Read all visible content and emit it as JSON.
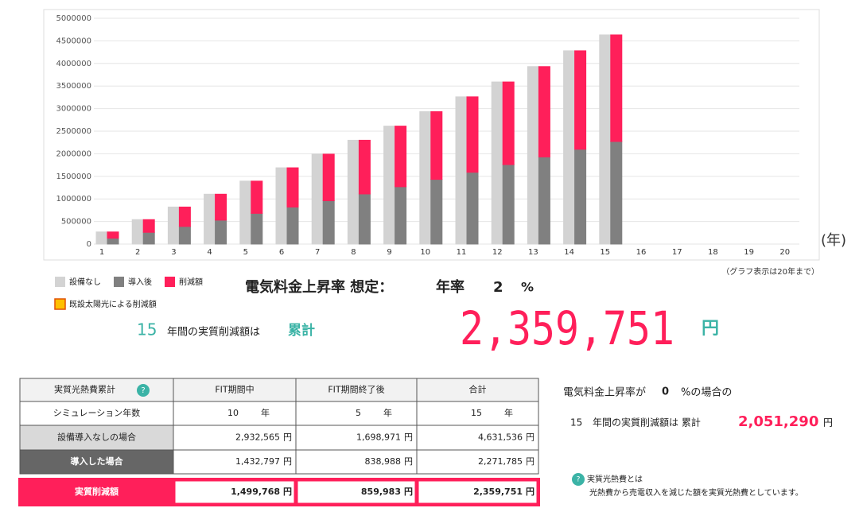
{
  "chart_data": {
    "type": "bar",
    "categories": [
      "1",
      "2",
      "3",
      "4",
      "5",
      "6",
      "7",
      "8",
      "9",
      "10",
      "11",
      "12",
      "13",
      "14",
      "15",
      "16",
      "17",
      "18",
      "19",
      "20"
    ],
    "series": [
      {
        "name": "設備なし",
        "color": "#d3d3d3",
        "group": 0,
        "values": [
          268000,
          541000,
          820000,
          1104000,
          1394000,
          1689000,
          1991000,
          2299000,
          2612000,
          2932565,
          3260000,
          3590000,
          3930000,
          4280000,
          4631536,
          null,
          null,
          null,
          null,
          null
        ]
      },
      {
        "name": "導入後",
        "color": "#808080",
        "group": 1,
        "values": [
          130000,
          260000,
          390000,
          530000,
          680000,
          820000,
          960000,
          1110000,
          1270000,
          1432797,
          1590000,
          1760000,
          1930000,
          2100000,
          2271785,
          null,
          null,
          null,
          null,
          null
        ]
      },
      {
        "name": "削減額",
        "color": "#ff1f5a",
        "group": 1,
        "values": [
          138000,
          281000,
          430000,
          574000,
          714000,
          869000,
          1031000,
          1189000,
          1342000,
          1499768,
          1670000,
          1830000,
          2000000,
          2180000,
          2359751,
          0,
          0,
          0,
          0,
          0
        ]
      }
    ],
    "extra_legend": {
      "name": "既設太陽光による削減額",
      "color": "#ffc000"
    },
    "ylim": [
      0,
      5000000
    ],
    "yticks": [
      0,
      500000,
      1000000,
      1500000,
      2000000,
      2500000,
      3000000,
      3500000,
      4000000,
      4500000,
      5000000
    ],
    "grid": true,
    "xlabel": "(年)",
    "note": "（グラフ表示は20年まで）"
  },
  "assumption": {
    "label": "電気料金上昇率 想定：",
    "rate_label": "年率",
    "rate": "2",
    "unit": "%"
  },
  "summary": {
    "years": "15",
    "text": "年間の実質削減額は",
    "cumulative": "累計",
    "amount": "2,359,751",
    "unit": "円"
  },
  "table": {
    "header": [
      "実質光熱費累計",
      "FIT期間中",
      "FIT期間終了後",
      "合計"
    ],
    "header_icon": "?",
    "rows": [
      {
        "label": "シミュレーション年数",
        "cells": [
          [
            "10",
            "年"
          ],
          [
            "5",
            "年"
          ],
          [
            "15",
            "年"
          ]
        ]
      },
      {
        "label": "設備導入なしの場合",
        "cells": [
          [
            "2,932,565",
            "円"
          ],
          [
            "1,698,971",
            "円"
          ],
          [
            "4,631,536",
            "円"
          ]
        ]
      },
      {
        "label": "導入した場合",
        "cells": [
          [
            "1,432,797",
            "円"
          ],
          [
            "838,988",
            "円"
          ],
          [
            "2,271,785",
            "円"
          ]
        ]
      },
      {
        "label": "実質削減額",
        "cells": [
          [
            "1,499,768",
            "円"
          ],
          [
            "859,983",
            "円"
          ],
          [
            "2,359,751",
            "円"
          ]
        ]
      }
    ]
  },
  "zero_case": {
    "line1a": "電気料金上昇率が",
    "rate": "0",
    "line1b": "%の場合の",
    "years": "15",
    "text": "年間の実質削減額は 累計",
    "amount": "2,051,290",
    "unit": "円"
  },
  "info": {
    "icon": "?",
    "title": "実質光熱費とは",
    "text": "光熱費から売電収入を減じた額を実質光熱費としています。"
  }
}
